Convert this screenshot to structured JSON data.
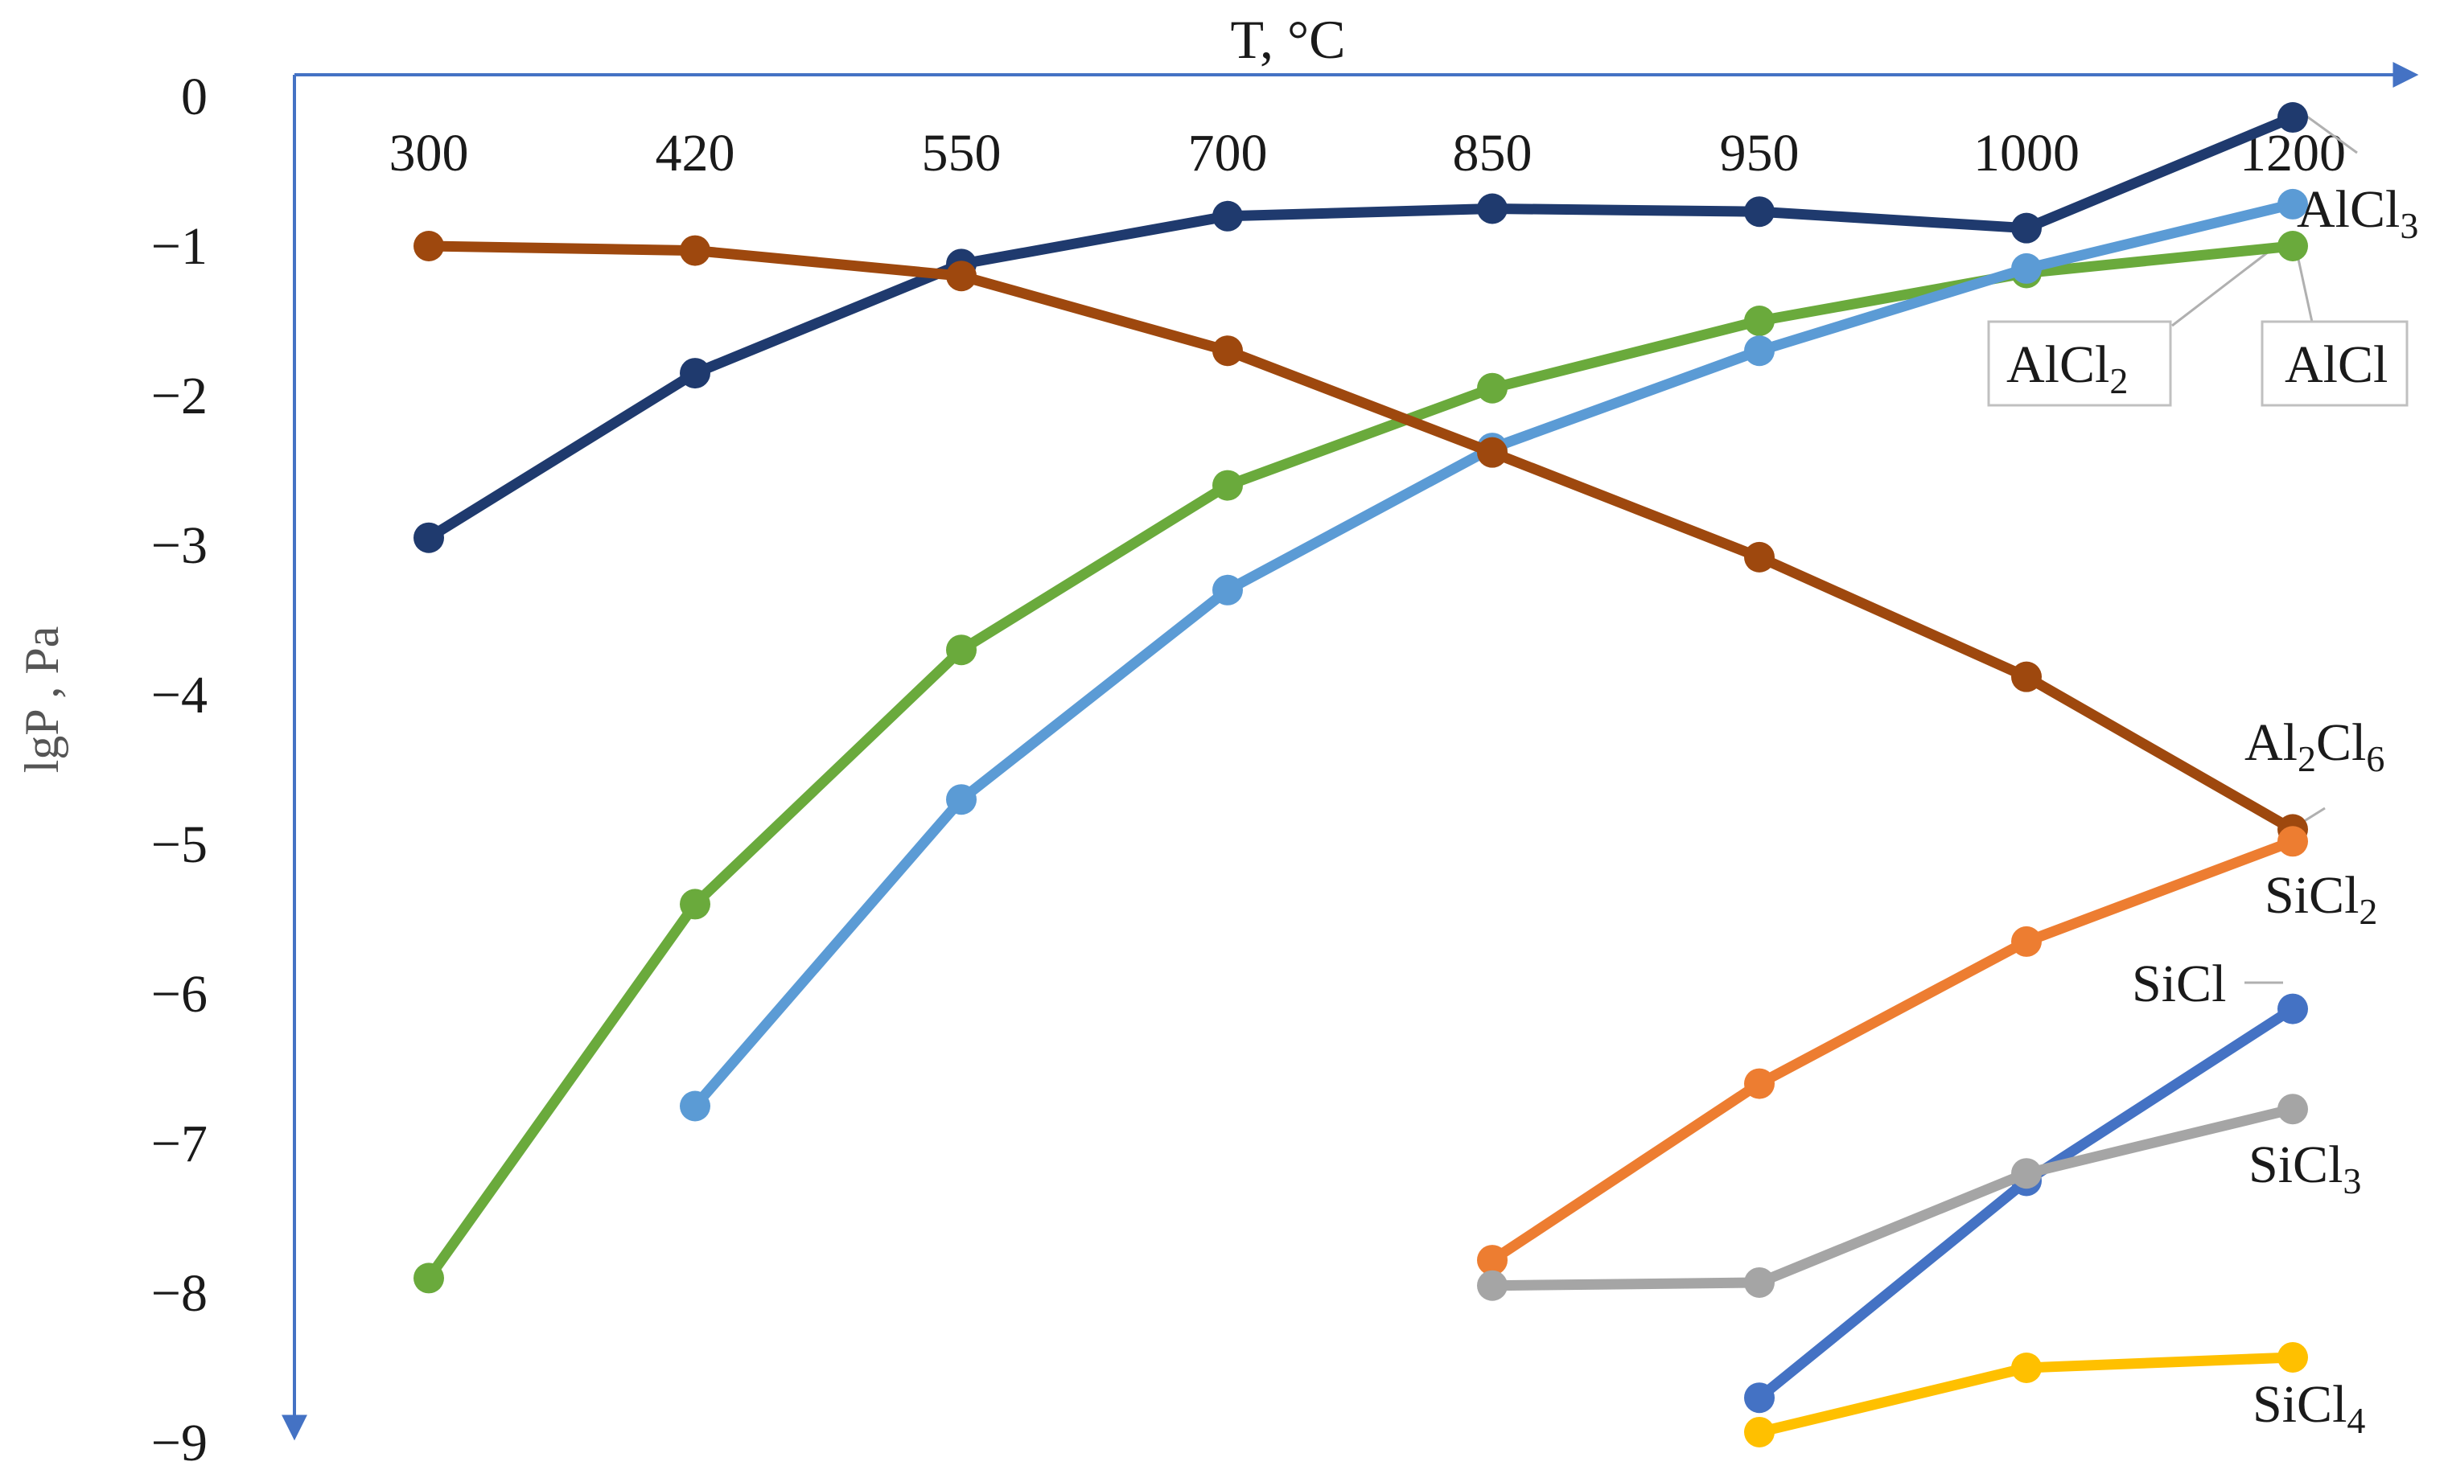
{
  "chart_data": {
    "type": "line",
    "title": "",
    "xlabel": "T, °C",
    "ylabel": "lgP , Pa",
    "x": [
      "300",
      "420",
      "550",
      "700",
      "850",
      "950",
      "1000",
      "1200"
    ],
    "y_ticks": [
      "0",
      "−1",
      "−2",
      "−3",
      "−4",
      "−5",
      "−6",
      "−7",
      "−8",
      "−9"
    ],
    "ylim": [
      -9,
      0
    ],
    "grid": false,
    "legend": "none",
    "series": [
      {
        "name": "AlCl3",
        "label_main": "AlCl",
        "label_sub": "3",
        "color": "#1f3a6e",
        "values": [
          -2.95,
          -1.85,
          -1.12,
          -0.8,
          -0.75,
          -0.77,
          -0.88,
          -0.14
        ]
      },
      {
        "name": "AlCl2",
        "label_main": "AlCl",
        "label_sub": "2",
        "color": "#6aaa3c",
        "values": [
          -7.9,
          -5.4,
          -3.7,
          -2.6,
          -1.95,
          -1.5,
          -1.18,
          -1.0
        ]
      },
      {
        "name": "AlCl",
        "label_main": "AlCl",
        "label_sub": "",
        "color": "#5b9bd5",
        "values": [
          null,
          -6.75,
          -4.7,
          -3.3,
          -2.35,
          -1.7,
          -1.15,
          -0.72
        ]
      },
      {
        "name": "Al2Cl6",
        "label_main": "Al",
        "label_sub": "2",
        "label_main2": "Cl",
        "label_sub2": "6",
        "color": "#9e480e",
        "values": [
          -1.0,
          -1.03,
          -1.2,
          -1.7,
          -2.38,
          -3.08,
          -3.88,
          -4.9
        ]
      },
      {
        "name": "SiCl2",
        "label_main": "SiCl",
        "label_sub": "2",
        "color": "#ed7d31",
        "values": [
          null,
          null,
          null,
          null,
          -7.78,
          -6.6,
          -5.65,
          -4.98
        ]
      },
      {
        "name": "SiCl",
        "label_main": "SiCl",
        "label_sub": "",
        "color": "#4472c4",
        "values": [
          null,
          null,
          null,
          null,
          null,
          -8.7,
          -7.25,
          -6.1
        ]
      },
      {
        "name": "SiCl3",
        "label_main": "SiCl",
        "label_sub": "3",
        "color": "#a5a5a5",
        "values": [
          null,
          null,
          null,
          null,
          -7.95,
          -7.93,
          -7.2,
          -6.77
        ]
      },
      {
        "name": "SiCl4",
        "label_main": "SiCl",
        "label_sub": "4",
        "color": "#ffc000",
        "values": [
          null,
          null,
          null,
          null,
          null,
          -8.93,
          -8.5,
          -8.43
        ]
      }
    ]
  }
}
